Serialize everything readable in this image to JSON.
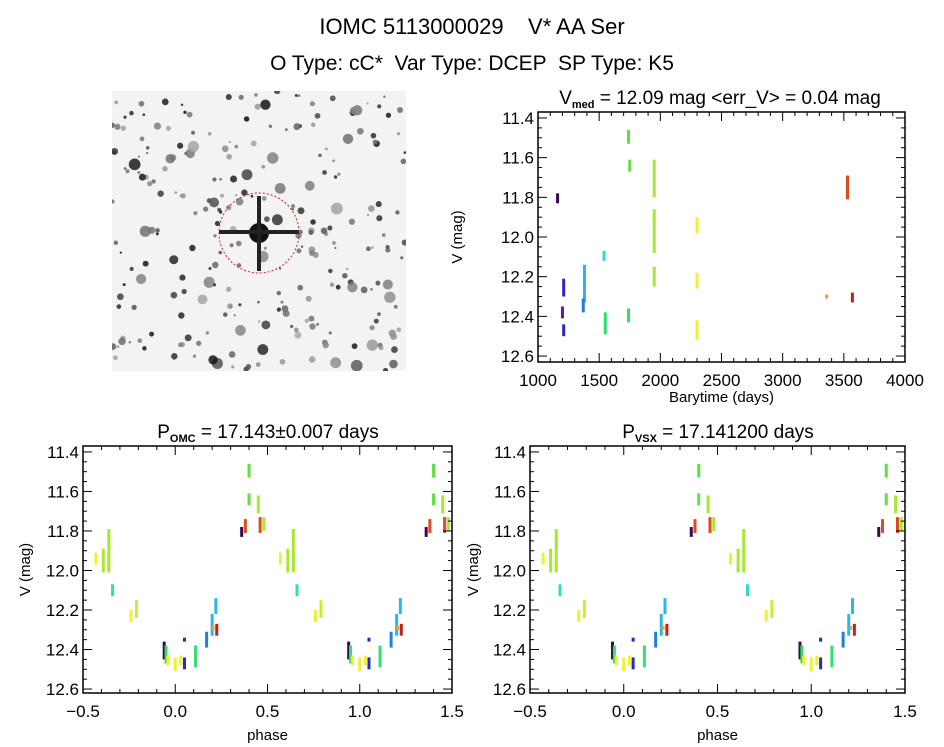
{
  "header": {
    "title": "IOMC 5113000029    V* AA Ser",
    "subtitle": "O Type: cC*  Var Type: DCEP  SP Type: K5"
  },
  "chart_data": [
    {
      "type": "scatter",
      "title_main": "V",
      "title_sub": "med",
      "title_rest": " = 12.09 mag <err_V> = 0.04 mag",
      "xlabel": "Barytime (days)",
      "ylabel": "V (mag)",
      "xlim": [
        1000,
        4000
      ],
      "ylim": [
        12.63,
        11.37
      ],
      "y_inverted": true,
      "xticks": [
        "1000",
        "1500",
        "2000",
        "2500",
        "3000",
        "3500",
        "4000"
      ],
      "yticks": [
        "11.4",
        "11.6",
        "11.8",
        "12.0",
        "12.2",
        "12.4",
        "12.6"
      ],
      "grid": false,
      "points_format": [
        "x",
        "V_bright",
        "V_faint",
        "color"
      ],
      "points": [
        [
          1160,
          11.78,
          11.83,
          "#3a0850"
        ],
        [
          1210,
          12.21,
          12.3,
          "#2828c8"
        ],
        [
          1200,
          12.35,
          12.41,
          "#6418a8"
        ],
        [
          1210,
          12.44,
          12.5,
          "#2828c8"
        ],
        [
          1380,
          12.14,
          12.33,
          "#28b8e8"
        ],
        [
          1370,
          12.31,
          12.38,
          "#2080d8"
        ],
        [
          1540,
          12.07,
          12.12,
          "#28e0c0"
        ],
        [
          1550,
          12.38,
          12.49,
          "#28e070"
        ],
        [
          1740,
          11.46,
          11.53,
          "#60e040"
        ],
        [
          1750,
          11.61,
          11.67,
          "#60e040"
        ],
        [
          1740,
          12.36,
          12.43,
          "#30e060"
        ],
        [
          1950,
          11.61,
          11.8,
          "#a8e830"
        ],
        [
          1950,
          11.86,
          12.08,
          "#a8e830"
        ],
        [
          1950,
          12.15,
          12.25,
          "#a8e830"
        ],
        [
          2300,
          11.9,
          11.98,
          "#f0f030"
        ],
        [
          2300,
          12.18,
          12.26,
          "#f0f030"
        ],
        [
          2300,
          12.42,
          12.52,
          "#f0f030"
        ],
        [
          3360,
          12.29,
          12.31,
          "#e8a030"
        ],
        [
          3530,
          11.69,
          11.81,
          "#e04820"
        ],
        [
          3570,
          12.28,
          12.33,
          "#c02020"
        ]
      ]
    },
    {
      "type": "scatter",
      "title_main": "P",
      "title_sub": "OMC",
      "title_rest": " = 17.143±0.007 days",
      "xlabel": "phase",
      "ylabel": "V (mag)",
      "xlim": [
        -0.5,
        1.5
      ],
      "ylim": [
        12.62,
        11.37
      ],
      "y_inverted": true,
      "xticks": [
        "−0.5",
        "0.0",
        "0.5",
        "1.0",
        "1.5"
      ],
      "yticks": [
        "11.4",
        "11.6",
        "11.8",
        "12.0",
        "12.2",
        "12.4",
        "12.6"
      ],
      "grid": false,
      "phase_repeated": true,
      "points_format": [
        "phase",
        "V_bright",
        "V_faint",
        "color"
      ],
      "points": [
        [
          -0.43,
          11.91,
          11.97,
          "#f0f030"
        ],
        [
          -0.39,
          11.89,
          12.01,
          "#a8e830"
        ],
        [
          -0.36,
          11.79,
          12.01,
          "#a8e830"
        ],
        [
          -0.34,
          12.07,
          12.13,
          "#28e0c0"
        ],
        [
          -0.24,
          12.2,
          12.26,
          "#f0f030"
        ],
        [
          -0.21,
          12.15,
          12.24,
          "#c8f030"
        ],
        [
          -0.06,
          12.36,
          12.45,
          "#3a0850"
        ],
        [
          -0.05,
          12.38,
          12.47,
          "#30e060"
        ],
        [
          -0.04,
          12.43,
          12.48,
          "#f0f030"
        ],
        [
          0.0,
          12.44,
          12.51,
          "#f0f030"
        ],
        [
          0.03,
          12.43,
          12.48,
          "#f0f030"
        ],
        [
          0.05,
          12.34,
          12.36,
          "#2828c8"
        ],
        [
          0.05,
          12.44,
          12.5,
          "#2828c8"
        ],
        [
          0.11,
          12.38,
          12.49,
          "#30e070"
        ],
        [
          0.17,
          12.31,
          12.39,
          "#2080d8"
        ],
        [
          0.2,
          12.22,
          12.33,
          "#28b8e8"
        ],
        [
          0.22,
          12.14,
          12.22,
          "#28b8e8"
        ],
        [
          0.205,
          12.28,
          12.3,
          "#e8a030"
        ],
        [
          0.225,
          12.27,
          12.33,
          "#c02020"
        ],
        [
          0.36,
          11.78,
          11.83,
          "#3a0850"
        ],
        [
          0.38,
          11.74,
          11.81,
          "#e04820"
        ],
        [
          0.4,
          11.46,
          11.53,
          "#60e040"
        ],
        [
          0.4,
          11.61,
          11.67,
          "#60e040"
        ],
        [
          0.45,
          11.62,
          11.71,
          "#a8e830"
        ],
        [
          0.46,
          11.73,
          11.81,
          "#e04820"
        ],
        [
          0.48,
          11.73,
          11.8,
          "#a8e830"
        ]
      ]
    },
    {
      "type": "scatter",
      "title_main": "P",
      "title_sub": "VSX",
      "title_rest": " = 17.141200 days",
      "xlabel": "phase",
      "ylabel": "V (mag)",
      "xlim": [
        -0.5,
        1.5
      ],
      "ylim": [
        12.62,
        11.37
      ],
      "y_inverted": true,
      "xticks": [
        "−0.5",
        "0.0",
        "0.5",
        "1.0",
        "1.5"
      ],
      "yticks": [
        "11.4",
        "11.6",
        "11.8",
        "12.0",
        "12.2",
        "12.4",
        "12.6"
      ],
      "grid": false,
      "phase_repeated": true,
      "points_format": [
        "phase",
        "V_bright",
        "V_faint",
        "color"
      ],
      "points": [
        [
          -0.43,
          11.91,
          11.97,
          "#f0f030"
        ],
        [
          -0.39,
          11.89,
          12.01,
          "#a8e830"
        ],
        [
          -0.36,
          11.79,
          12.01,
          "#a8e830"
        ],
        [
          -0.34,
          12.07,
          12.13,
          "#28e0c0"
        ],
        [
          -0.24,
          12.2,
          12.26,
          "#f0f030"
        ],
        [
          -0.21,
          12.15,
          12.24,
          "#c8f030"
        ],
        [
          -0.06,
          12.36,
          12.45,
          "#3a0850"
        ],
        [
          -0.05,
          12.38,
          12.47,
          "#30e060"
        ],
        [
          -0.04,
          12.43,
          12.48,
          "#f0f030"
        ],
        [
          0.0,
          12.44,
          12.51,
          "#f0f030"
        ],
        [
          0.03,
          12.43,
          12.48,
          "#f0f030"
        ],
        [
          0.05,
          12.34,
          12.36,
          "#2828c8"
        ],
        [
          0.05,
          12.44,
          12.5,
          "#2828c8"
        ],
        [
          0.11,
          12.38,
          12.49,
          "#30e070"
        ],
        [
          0.17,
          12.31,
          12.39,
          "#2080d8"
        ],
        [
          0.2,
          12.22,
          12.33,
          "#28b8e8"
        ],
        [
          0.22,
          12.14,
          12.22,
          "#28b8e8"
        ],
        [
          0.21,
          12.28,
          12.3,
          "#e8a030"
        ],
        [
          0.23,
          12.27,
          12.33,
          "#c02020"
        ],
        [
          0.36,
          11.78,
          11.83,
          "#3a0850"
        ],
        [
          0.38,
          11.74,
          11.81,
          "#e04820"
        ],
        [
          0.4,
          11.46,
          11.53,
          "#60e040"
        ],
        [
          0.4,
          11.61,
          11.67,
          "#60e040"
        ],
        [
          0.45,
          11.62,
          11.71,
          "#a8e830"
        ],
        [
          0.46,
          11.73,
          11.81,
          "#e04820"
        ],
        [
          0.48,
          11.73,
          11.8,
          "#a8e830"
        ]
      ]
    }
  ]
}
